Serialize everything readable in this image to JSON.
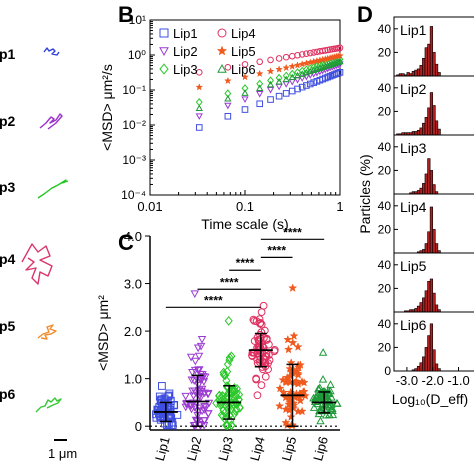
{
  "panel_a": {
    "labels": [
      "p1",
      "p2",
      "p3",
      "p4",
      "p5",
      "p6"
    ],
    "colors": [
      "#2e3fd9",
      "#9b2fd0",
      "#1fc81f",
      "#d8356a",
      "#ef8c2d",
      "#35c935"
    ],
    "scalebar_label": "1 μm"
  },
  "panel_labels": {
    "b": "B",
    "c": "C",
    "d": "D"
  },
  "chart_data": [
    {
      "id": "B",
      "type": "scatter",
      "xlabel": "Time scale (s)",
      "ylabel": "<MSD> μm²/s",
      "xscale": "log",
      "yscale": "log",
      "xlim": [
        0.01,
        1
      ],
      "ylim": [
        0.0001,
        10
      ],
      "xticks": [
        "0.01",
        "0.1",
        "1"
      ],
      "yticks": [
        "10⁻⁴",
        "10⁻³",
        "10⁻²",
        "10⁻¹",
        "10⁰",
        "10¹"
      ],
      "legend_placement": "top-left",
      "series": [
        {
          "name": "Lip1",
          "color": "#3f4fe0",
          "marker": "square",
          "y_first": 0.0085,
          "y_last": 0.32
        },
        {
          "name": "Lip2",
          "color": "#9a3ad2",
          "marker": "triangle-down",
          "y_first": 0.018,
          "y_last": 0.55
        },
        {
          "name": "Lip3",
          "color": "#2bc82b",
          "marker": "diamond",
          "y_first": 0.045,
          "y_last": 0.75
        },
        {
          "name": "Lip4",
          "color": "#e03060",
          "marker": "circle",
          "y_first": 0.32,
          "y_last": 1.6
        },
        {
          "name": "Lip5",
          "color": "#f05a1e",
          "marker": "star",
          "y_first": 0.12,
          "y_last": 0.95
        },
        {
          "name": "Lip6",
          "color": "#1f9a3a",
          "marker": "triangle-up",
          "y_first": 0.03,
          "y_last": 0.65
        }
      ]
    },
    {
      "id": "C",
      "type": "scatter",
      "ylabel": "<MSD> μm²",
      "ylim": [
        0,
        4.0
      ],
      "yticks": [
        "0",
        "1.0",
        "2.0",
        "3.0",
        "4.0"
      ],
      "categories": [
        "Lip1",
        "Lip2",
        "Lip3",
        "Lip4",
        "Lip5",
        "Lip6"
      ],
      "series": [
        {
          "name": "Lip1",
          "color": "#3f4fe0",
          "marker": "square",
          "mean": 0.3,
          "sd": 0.2
        },
        {
          "name": "Lip2",
          "color": "#9a3ad2",
          "marker": "triangle-down",
          "mean": 0.52,
          "sd": 0.55
        },
        {
          "name": "Lip3",
          "color": "#2bc82b",
          "marker": "diamond",
          "mean": 0.5,
          "sd": 0.35
        },
        {
          "name": "Lip4",
          "color": "#e03060",
          "marker": "circle",
          "mean": 1.6,
          "sd": 0.35
        },
        {
          "name": "Lip5",
          "color": "#f05a1e",
          "marker": "star",
          "mean": 0.65,
          "sd": 0.65
        },
        {
          "name": "Lip6",
          "color": "#1f9a3a",
          "marker": "triangle-up",
          "mean": 0.5,
          "sd": 0.22
        }
      ],
      "annotations": [
        {
          "from": "Lip1",
          "to": "Lip4",
          "y": 2.5,
          "text": "****"
        },
        {
          "from": "Lip2",
          "to": "Lip4",
          "y": 2.88,
          "text": "****"
        },
        {
          "from": "Lip3",
          "to": "Lip4",
          "y": 3.28,
          "text": "****"
        },
        {
          "from": "Lip4",
          "to": "Lip5",
          "y": 3.55,
          "text": "****"
        },
        {
          "from": "Lip4",
          "to": "Lip6",
          "y": 3.93,
          "text": "****"
        }
      ]
    },
    {
      "id": "D",
      "type": "bar",
      "ylabel": "Particles (%)",
      "xlabel": "Log₁₀(D_eff)",
      "xlim": [
        -3.5,
        -0.4
      ],
      "xticks": [
        "-3.0",
        "-2.0",
        "-1.0"
      ],
      "yticks": [
        "0",
        "20",
        "40"
      ],
      "bar_color": "#b02020",
      "bin_start": -3.4,
      "bin_width": 0.1,
      "panels": [
        {
          "name": "Lip1",
          "values": [
            1,
            2,
            2,
            1,
            3,
            2,
            4,
            5,
            6,
            9,
            15,
            24,
            27,
            42,
            20,
            10,
            3
          ]
        },
        {
          "name": "Lip2",
          "values": [
            1,
            1,
            2,
            2,
            2,
            2,
            3,
            3,
            4,
            6,
            10,
            15,
            23,
            36,
            25,
            12,
            5
          ]
        },
        {
          "name": "Lip3",
          "values": [
            0,
            0,
            0,
            0,
            0,
            1,
            2,
            2,
            3,
            5,
            9,
            17,
            30,
            20,
            8,
            2,
            0
          ]
        },
        {
          "name": "Lip4",
          "values": [
            0,
            0,
            0,
            0,
            0,
            0,
            0,
            0,
            1,
            2,
            3,
            8,
            18,
            39,
            20,
            8,
            2
          ]
        },
        {
          "name": "Lip5",
          "values": [
            0,
            0,
            0,
            1,
            1,
            2,
            2,
            3,
            5,
            8,
            12,
            18,
            26,
            28,
            16,
            6,
            2
          ]
        },
        {
          "name": "Lip6",
          "values": [
            0,
            0,
            0,
            0,
            0,
            0,
            1,
            2,
            4,
            7,
            12,
            20,
            30,
            40,
            18,
            6,
            2
          ]
        }
      ]
    }
  ]
}
